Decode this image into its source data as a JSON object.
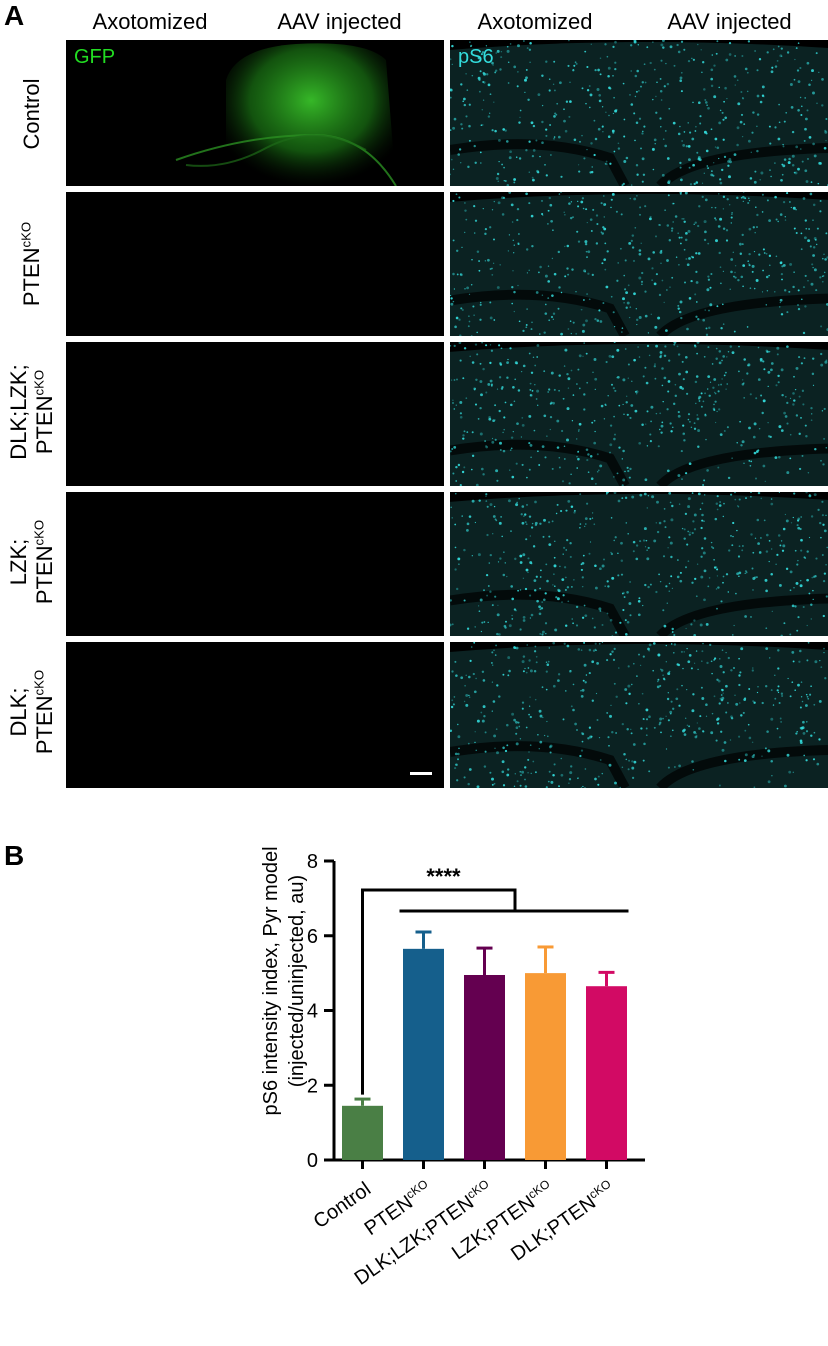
{
  "panel_a": {
    "letter": "A",
    "headers": [
      {
        "text": "Axotomized"
      },
      {
        "text": "AAV injected"
      },
      {
        "text": "Axotomized"
      },
      {
        "text": "AAV injected"
      }
    ],
    "channel_left": "GFP",
    "channel_right": "pS6",
    "channel_left_color": "#22dd22",
    "channel_right_color": "#33dddd",
    "rows": [
      {
        "lines": [
          "Control"
        ]
      },
      {
        "lines": [
          "PTEN"
        ],
        "sup": "cKO"
      },
      {
        "lines": [
          "DLK;LZK;",
          "PTEN"
        ],
        "sup": "cKO"
      },
      {
        "lines": [
          "LZK;",
          "PTEN"
        ],
        "sup": "cKO"
      },
      {
        "lines": [
          "DLK;",
          "PTEN"
        ],
        "sup": "cKO"
      }
    ]
  },
  "panel_b": {
    "letter": "B",
    "ylabel_line1": "pS6 intensity index, Pyr model",
    "ylabel_line2": "(injected/uninjected, au)",
    "significance": "****"
  },
  "chart_data": {
    "type": "bar",
    "categories": [
      "Control",
      "PTENcKO",
      "DLK;LZK;PTENcKO",
      "LZK;PTENcKO",
      "DLK;PTENcKO"
    ],
    "category_display": [
      {
        "main": "Control",
        "sup": ""
      },
      {
        "main": "PTEN",
        "sup": "cKO"
      },
      {
        "main": "DLK;LZK;PTEN",
        "sup": "cKO"
      },
      {
        "main": "LZK;PTEN",
        "sup": "cKO"
      },
      {
        "main": "DLK;PTEN",
        "sup": "cKO"
      }
    ],
    "values": [
      1.45,
      5.65,
      4.95,
      5.0,
      4.65
    ],
    "errors": [
      0.18,
      0.45,
      0.72,
      0.7,
      0.37
    ],
    "colors": [
      "#4a7f45",
      "#155f8c",
      "#640050",
      "#f89a35",
      "#d20a64"
    ],
    "ylim": [
      0,
      8
    ],
    "yticks": [
      0,
      2,
      4,
      6,
      8
    ],
    "xlabel": "",
    "ylabel": "pS6 intensity index, Pyr model (injected/uninjected, au)",
    "annotation": "****"
  }
}
